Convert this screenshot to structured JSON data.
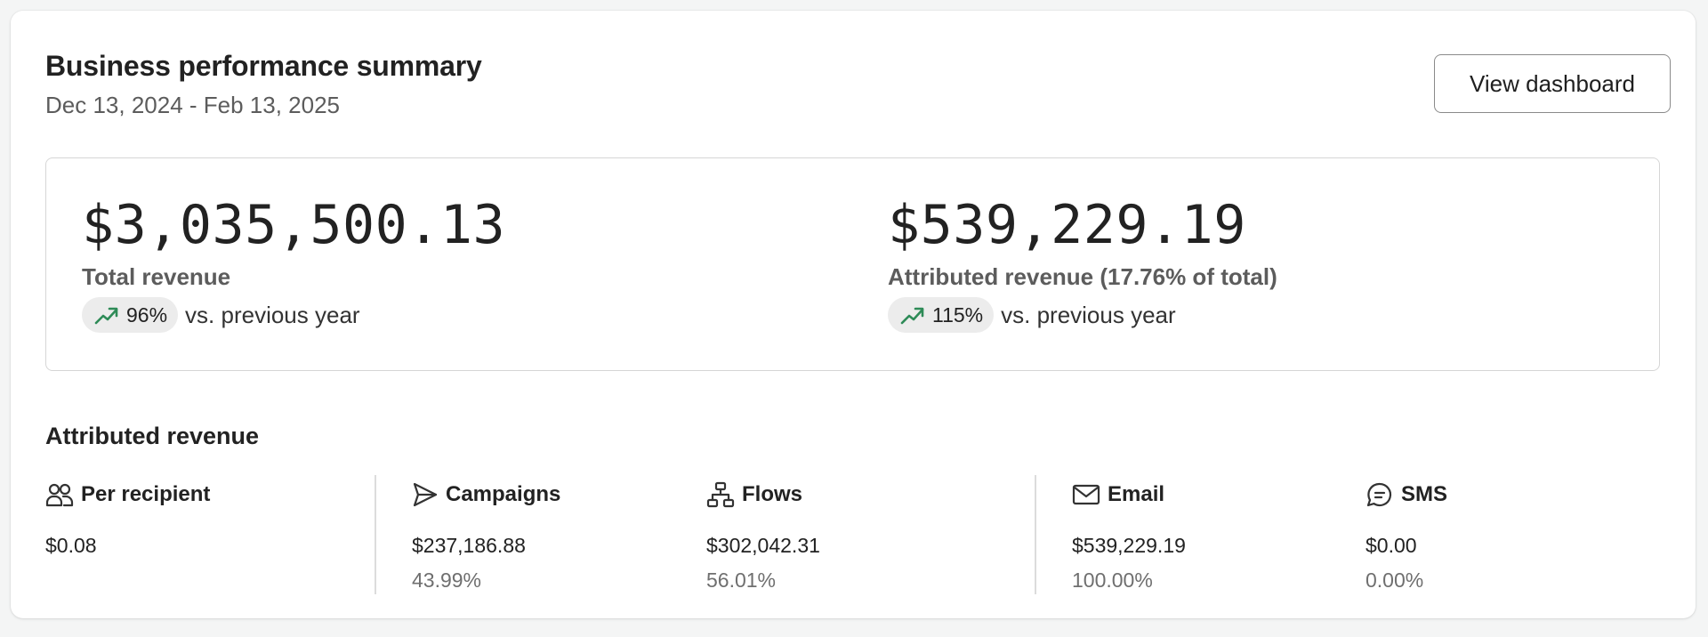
{
  "header": {
    "title": "Business performance summary",
    "date_range": "Dec 13, 2024 - Feb 13, 2025",
    "view_button": "View dashboard"
  },
  "summary": {
    "total": {
      "value": "$3,035,500.13",
      "label": "Total revenue",
      "change": "96%",
      "change_text": "vs. previous year"
    },
    "attributed": {
      "value": "$539,229.19",
      "label": "Attributed revenue (17.76% of total)",
      "change": "115%",
      "change_text": "vs. previous year"
    }
  },
  "attributed_section": {
    "title": "Attributed revenue",
    "stats": [
      {
        "label": "Per recipient",
        "icon": "people-icon",
        "value": "$0.08",
        "percent": ""
      },
      {
        "label": "Campaigns",
        "icon": "send-icon",
        "value": "$237,186.88",
        "percent": "43.99%"
      },
      {
        "label": "Flows",
        "icon": "flow-icon",
        "value": "$302,042.31",
        "percent": "56.01%"
      },
      {
        "label": "Email",
        "icon": "mail-icon",
        "value": "$539,229.19",
        "percent": "100.00%"
      },
      {
        "label": "SMS",
        "icon": "chat-icon",
        "value": "$0.00",
        "percent": "0.00%"
      }
    ]
  },
  "colors": {
    "trend_up": "#2e8b57",
    "pill_bg": "#ececec",
    "muted_text": "#5c5c5c"
  }
}
